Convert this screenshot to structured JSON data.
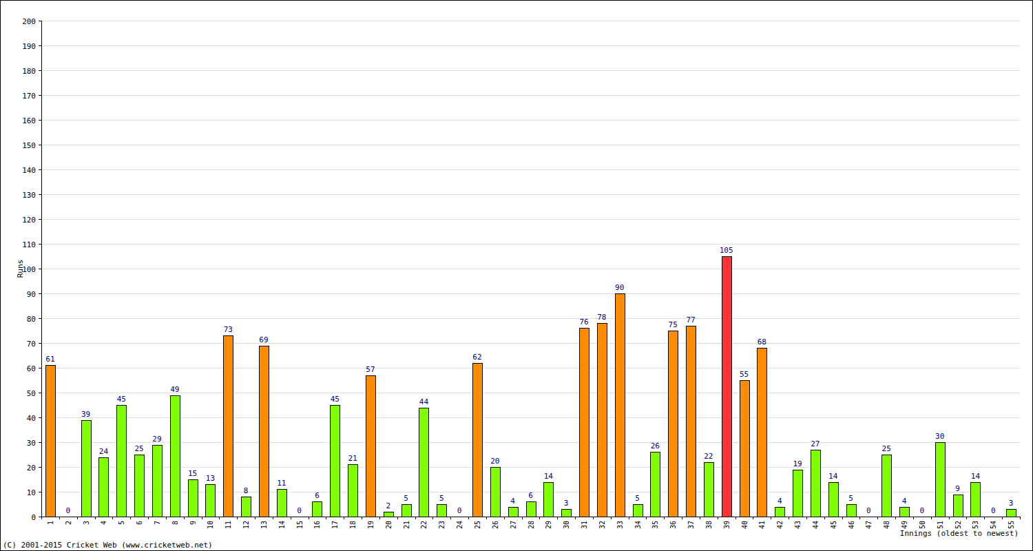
{
  "chart_data": {
    "type": "bar",
    "y_label": "Runs",
    "x_label": "Innings (oldest to newest)",
    "annotations": [
      "(C) 2001-2015 Cricket Web (www.cricketweb.net)"
    ],
    "categories": [
      "1",
      "2",
      "3",
      "4",
      "5",
      "6",
      "7",
      "8",
      "9",
      "10",
      "11",
      "12",
      "13",
      "14",
      "15",
      "16",
      "17",
      "18",
      "19",
      "20",
      "21",
      "22",
      "23",
      "24",
      "25",
      "26",
      "27",
      "28",
      "29",
      "30",
      "31",
      "32",
      "33",
      "34",
      "35",
      "36",
      "37",
      "38",
      "39",
      "40",
      "41",
      "42",
      "43",
      "44",
      "45",
      "46",
      "47",
      "48",
      "49",
      "50",
      "51",
      "52",
      "53",
      "54",
      "55"
    ],
    "values": [
      61,
      0,
      39,
      24,
      45,
      25,
      29,
      49,
      15,
      13,
      73,
      8,
      69,
      11,
      0,
      6,
      45,
      21,
      57,
      2,
      5,
      44,
      5,
      0,
      62,
      20,
      4,
      6,
      14,
      3,
      76,
      78,
      90,
      5,
      26,
      75,
      77,
      22,
      105,
      55,
      68,
      4,
      19,
      27,
      14,
      5,
      0,
      25,
      4,
      0,
      30,
      9,
      14,
      0,
      3
    ],
    "colors": [
      "#ff8c00",
      "#80ff00",
      "#80ff00",
      "#80ff00",
      "#80ff00",
      "#80ff00",
      "#80ff00",
      "#80ff00",
      "#80ff00",
      "#80ff00",
      "#ff8c00",
      "#80ff00",
      "#ff8c00",
      "#80ff00",
      "#80ff00",
      "#80ff00",
      "#80ff00",
      "#80ff00",
      "#ff8c00",
      "#80ff00",
      "#80ff00",
      "#80ff00",
      "#80ff00",
      "#80ff00",
      "#ff8c00",
      "#80ff00",
      "#80ff00",
      "#80ff00",
      "#80ff00",
      "#80ff00",
      "#ff8c00",
      "#ff8c00",
      "#ff8c00",
      "#80ff00",
      "#80ff00",
      "#ff8c00",
      "#ff8c00",
      "#80ff00",
      "#ff3333",
      "#ff8c00",
      "#ff8c00",
      "#80ff00",
      "#80ff00",
      "#80ff00",
      "#80ff00",
      "#80ff00",
      "#80ff00",
      "#80ff00",
      "#80ff00",
      "#80ff00",
      "#80ff00",
      "#80ff00",
      "#80ff00",
      "#80ff00",
      "#80ff00"
    ],
    "ylim": [
      0,
      200
    ],
    "yticks": [
      0,
      10,
      20,
      30,
      40,
      50,
      60,
      70,
      80,
      90,
      100,
      110,
      120,
      130,
      140,
      150,
      160,
      170,
      180,
      190,
      200
    ],
    "grid": true,
    "data_labels": true
  }
}
